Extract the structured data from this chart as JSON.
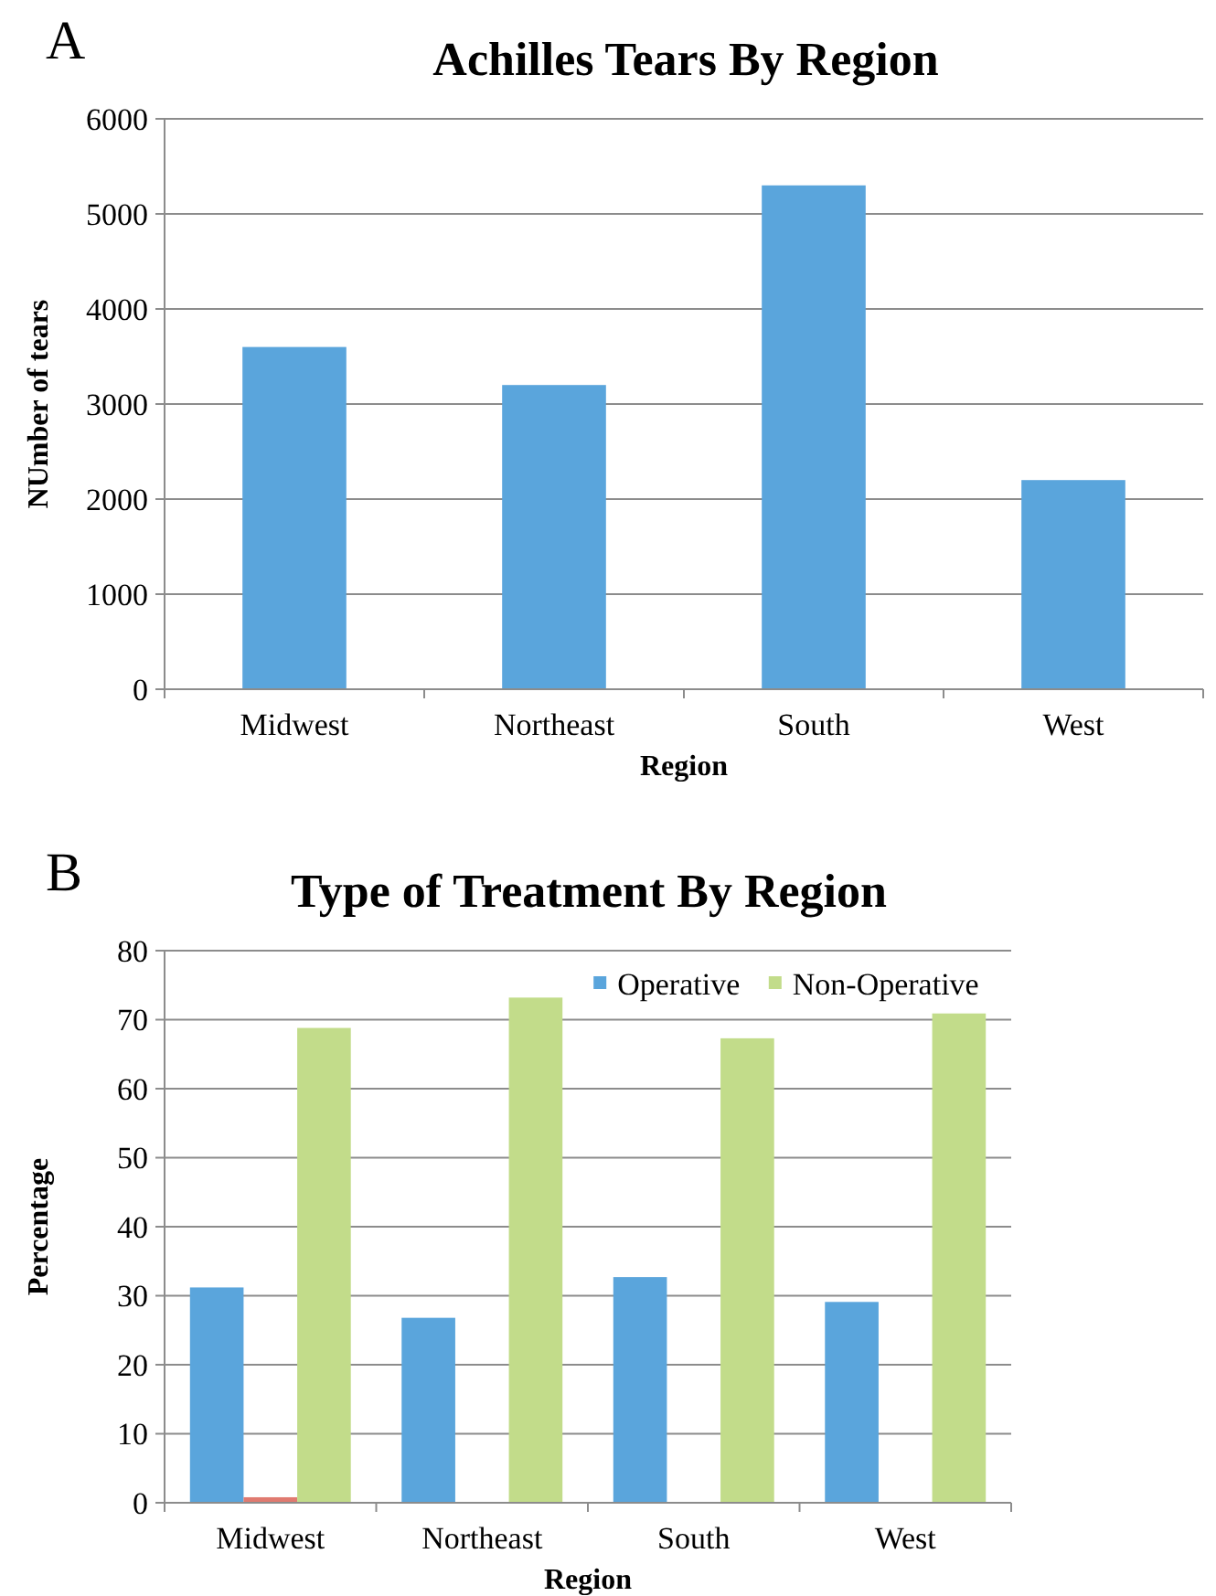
{
  "chart_data": [
    {
      "type": "bar",
      "title": "Achilles Tears By Region",
      "xlabel": "Region",
      "ylabel": "NUmber of tears",
      "categories": [
        "Midwest",
        "Northeast",
        "South",
        "West"
      ],
      "values": [
        3600,
        3200,
        5300,
        2200
      ],
      "color": "#5aa5dc",
      "ylim": [
        0,
        6000
      ],
      "yticks": [
        0,
        1000,
        2000,
        3000,
        4000,
        5000,
        6000
      ],
      "grid": "y",
      "annotations": [
        "A"
      ]
    },
    {
      "type": "bar",
      "title": "Type of Treatment By Region",
      "xlabel": "Region",
      "ylabel": "Percentage",
      "categories": [
        "Midwest",
        "Northeast",
        "South",
        "West"
      ],
      "series": [
        {
          "name": "Operative",
          "color": "#5aa5dc",
          "values": [
            31.2,
            26.8,
            32.7,
            29.1
          ]
        },
        {
          "color": "#e07a70",
          "values": [
            0.8,
            0,
            0,
            0
          ]
        },
        {
          "name": "Non-Operative",
          "color": "#c2dc8a",
          "values": [
            68.8,
            73.2,
            67.3,
            70.9
          ]
        }
      ],
      "ylim": [
        0,
        80
      ],
      "yticks": [
        0,
        10,
        20,
        30,
        40,
        50,
        60,
        70,
        80
      ],
      "grid": "y",
      "legend": "top right",
      "annotations": [
        "B"
      ]
    }
  ]
}
